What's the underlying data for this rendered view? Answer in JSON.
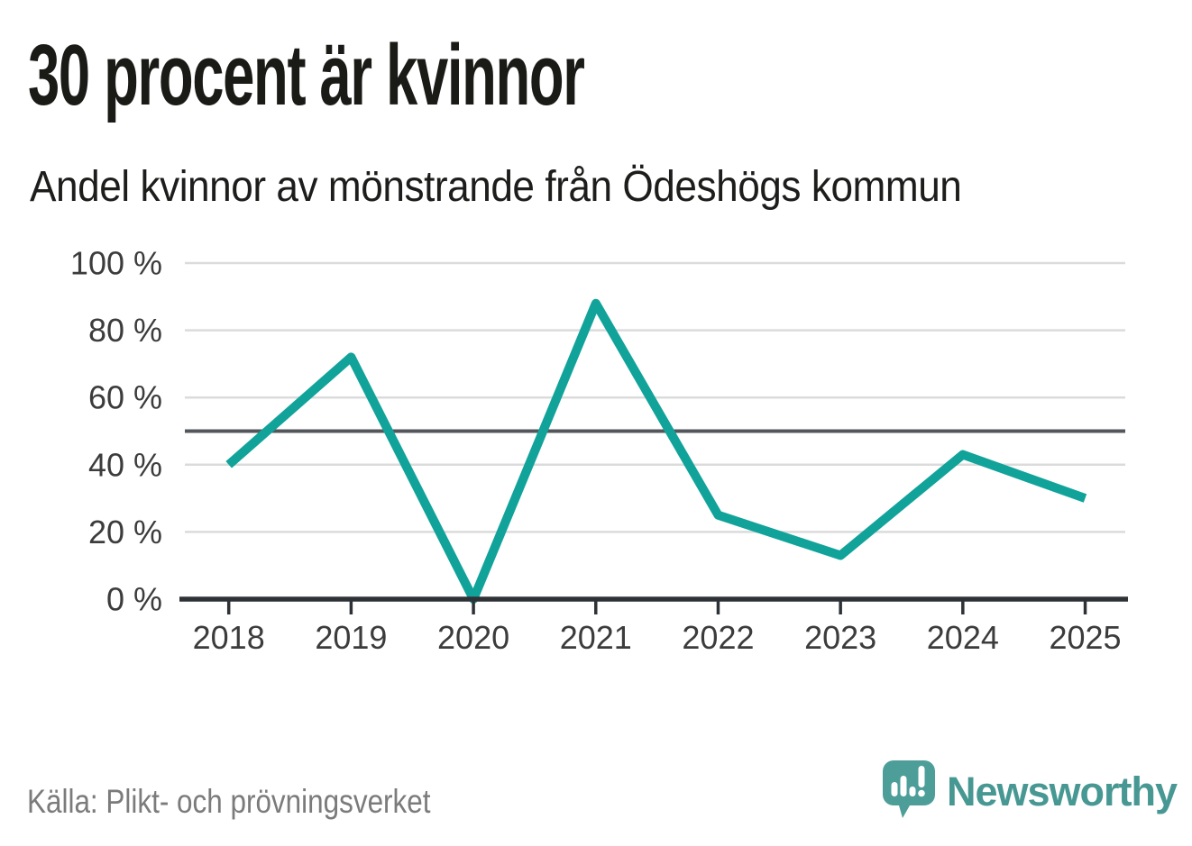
{
  "header": {
    "title": "30 procent är kvinnor",
    "subtitle": "Andel kvinnor av mönstrande från Ödeshögs kommun"
  },
  "footer": {
    "source": "Källa: Plikt- och prövningsverket",
    "brand_name": "Newsworthy"
  },
  "colors": {
    "line": "#11a39a",
    "grid": "#dbdbdb",
    "reference_line": "#53575b",
    "axis": "#2e3236",
    "tick_text": "#3c3c3c",
    "title_text": "#1a1a17",
    "muted_text": "#7b7b7b",
    "brand": "#479893"
  },
  "chart_data": {
    "type": "line",
    "title": "30 procent är kvinnor",
    "subtitle": "Andel kvinnor av mönstrande från Ödeshögs kommun",
    "categories": [
      "2018",
      "2019",
      "2020",
      "2021",
      "2022",
      "2023",
      "2024",
      "2025"
    ],
    "series": [
      {
        "name": "Andel kvinnor",
        "values": [
          40,
          72,
          0,
          88,
          25,
          13,
          43,
          30
        ]
      }
    ],
    "unit": "%",
    "ylim": [
      0,
      100
    ],
    "yticks": [
      {
        "value": 0,
        "label": "0 %"
      },
      {
        "value": 20,
        "label": "20 %"
      },
      {
        "value": 40,
        "label": "40 %"
      },
      {
        "value": 60,
        "label": "60 %"
      },
      {
        "value": 80,
        "label": "80 %"
      },
      {
        "value": 100,
        "label": "100 %"
      }
    ],
    "reference_line": {
      "value": 50
    },
    "grid": "horizontal",
    "legend": "none",
    "source": "Källa: Plikt- och prövningsverket"
  }
}
